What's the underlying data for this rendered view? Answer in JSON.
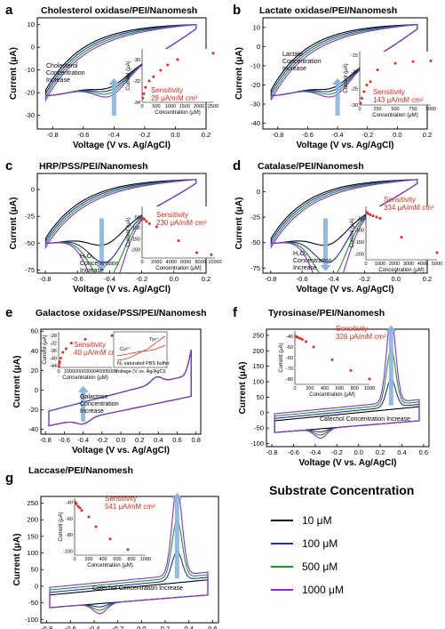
{
  "colors": {
    "c10": "#000000",
    "c100": "#1f2fb5",
    "c500": "#1b9a1b",
    "c1000": "#8a2be2",
    "arrow": "#8ab4dc",
    "sensitivity": "#e8281e"
  },
  "legend": {
    "title": "Substrate Concentration",
    "entries": [
      "10 μM",
      "100 μM",
      "500 μM",
      "1000 μM"
    ]
  },
  "chart_data": [
    {
      "id": "a",
      "letter": "a",
      "type": "line",
      "title": "Cholesterol oxidase/PEI/Nanomesh",
      "xlabel": "Voltage (V vs. Ag/AgCl)",
      "ylabel": "Current (μA)",
      "xlim": [
        -0.9,
        0.2
      ],
      "ylim": [
        -36,
        13
      ],
      "xticks": [
        -0.8,
        -0.6,
        -0.4,
        -0.2,
        0.0,
        0.2
      ],
      "yticks": [
        -30,
        -20,
        -10,
        0,
        10
      ],
      "annotation": [
        "Cholesterol",
        "Concentration",
        "Increase"
      ],
      "inset": {
        "xlabel": "Concentration (μM)",
        "ylabel": "Current (μA)",
        "xlim": [
          0,
          2500
        ],
        "ylim": [
          -34,
          -29
        ],
        "xticks": [
          0,
          500,
          1000,
          1500,
          2000,
          2500
        ],
        "yticks": [
          -34,
          -32,
          -30
        ],
        "points": [
          [
            25,
            -33.6
          ],
          [
            60,
            -33.2
          ],
          [
            120,
            -32.6
          ],
          [
            250,
            -32
          ],
          [
            400,
            -31.6
          ],
          [
            650,
            -31
          ],
          [
            900,
            -30.5
          ],
          [
            1250,
            -30
          ],
          [
            2500,
            -29.4
          ]
        ],
        "sensitivity": [
          "Sensitivity",
          "28 μA/mM cm²"
        ]
      }
    },
    {
      "id": "b",
      "letter": "b",
      "type": "line",
      "title": "Lactate oxidase/PEI/Nanomesh",
      "xlabel": "Voltage (V vs. Ag/AgCl)",
      "ylabel": "Current (μA)",
      "xlim": [
        -0.9,
        0.2
      ],
      "ylim": [
        -43,
        15
      ],
      "xticks": [
        -0.8,
        -0.6,
        -0.4,
        -0.2,
        0.0,
        0.2
      ],
      "yticks": [
        -40,
        -30,
        -20,
        -10,
        0,
        10
      ],
      "annotation": [
        "Lactate",
        "Concentration",
        "Increase"
      ],
      "inset": {
        "xlabel": "Concentration (μM)",
        "ylabel": "Current (μA)",
        "xlim": [
          0,
          1000
        ],
        "ylim": [
          -30,
          -14
        ],
        "xticks": [
          0,
          250,
          500,
          750,
          1000
        ],
        "yticks": [
          -30,
          -25,
          -20,
          -15
        ],
        "points": [
          [
            10,
            -29.5
          ],
          [
            30,
            -28
          ],
          [
            60,
            -26
          ],
          [
            100,
            -24
          ],
          [
            150,
            -23
          ],
          [
            250,
            -19.5
          ],
          [
            500,
            -17.5
          ],
          [
            750,
            -17
          ],
          [
            1000,
            -16.8
          ]
        ],
        "sensitivity": [
          "Sensitivity",
          "143 μA/mM cm²"
        ]
      }
    },
    {
      "id": "c",
      "letter": "c",
      "type": "line",
      "title": "HRP/PSS/PEI/Nanomesh",
      "xlabel": "Voltage (V vs. Ag/AgCl)",
      "ylabel": "Current (μA)",
      "xlim": [
        -0.85,
        0.2
      ],
      "ylim": [
        -78,
        15
      ],
      "xticks": [
        -0.8,
        -0.6,
        -0.4,
        -0.2,
        0.0,
        0.2
      ],
      "yticks": [
        -75,
        -50,
        -25,
        0
      ],
      "annotation": [
        "H₂O₂",
        "Concentration",
        "Increase"
      ],
      "inset": {
        "xlabel": "Concentration (μM)",
        "ylabel": "Current (μA)",
        "xlim": [
          0,
          10000
        ],
        "ylim": [
          -240,
          0
        ],
        "xticks": [
          0,
          2000,
          4000,
          6000,
          8000,
          10000
        ],
        "yticks": [
          -200,
          -150,
          -100,
          -50
        ],
        "points": [
          [
            100,
            -55
          ],
          [
            300,
            -60
          ],
          [
            600,
            -70
          ],
          [
            1000,
            -80
          ],
          [
            2000,
            -95
          ],
          [
            5000,
            -160
          ],
          [
            7500,
            -215
          ],
          [
            9500,
            -225
          ]
        ],
        "sensitivity": [
          "Sensitivity",
          "230 μA/mM cm²"
        ]
      }
    },
    {
      "id": "d",
      "letter": "d",
      "type": "line",
      "title": "Catalase/PEI/Nanomesh",
      "xlabel": "Voltage (V vs. Ag/AgCl)",
      "ylabel": "Current (μA)",
      "xlim": [
        -0.85,
        0.2
      ],
      "ylim": [
        -80,
        18
      ],
      "xticks": [
        -0.8,
        -0.6,
        -0.4,
        -0.2,
        0.0,
        0.2
      ],
      "yticks": [
        -75,
        -50,
        -25,
        0
      ],
      "annotation": [
        "H₂O₂",
        "Concentration",
        "Increase"
      ],
      "inset": {
        "xlabel": "Concentration (μM)",
        "ylabel": "Current (μA)",
        "xlim": [
          0,
          5000
        ],
        "ylim": [
          -225,
          0
        ],
        "xticks": [
          0,
          1000,
          2000,
          3000,
          4000,
          5000
        ],
        "yticks": [
          -200,
          -150,
          -100,
          -50
        ],
        "points": [
          [
            50,
            -25
          ],
          [
            150,
            -30
          ],
          [
            300,
            -35
          ],
          [
            500,
            -40
          ],
          [
            750,
            -45
          ],
          [
            1000,
            -50
          ],
          [
            2500,
            -130
          ],
          [
            5000,
            -195
          ]
        ],
        "sensitivity": [
          "Sensitivity",
          "334 μA/mM cm²"
        ]
      }
    },
    {
      "id": "e",
      "letter": "e",
      "type": "line",
      "title": "Galactose oxidase/PSS/PEI/Nanomesh",
      "xlabel": "Voltage (V vs. Ag/AgCl)",
      "ylabel": "Current (μA)",
      "xlim": [
        -0.85,
        0.85
      ],
      "ylim": [
        -45,
        62
      ],
      "xticks": [
        -0.8,
        -0.6,
        -0.4,
        -0.2,
        0.0,
        0.2,
        0.4,
        0.6,
        0.8
      ],
      "yticks": [
        -40,
        -20,
        0,
        20,
        40,
        60
      ],
      "annotation": [
        "Galactose",
        "Concentration",
        "Increase"
      ],
      "inset": {
        "xlabel": "Concentration (μM)",
        "ylabel": "Current (μA)",
        "xlim": [
          0,
          5000
        ],
        "ylim": [
          -45,
          -26
        ],
        "xticks": [
          0,
          1000,
          2000,
          3000,
          4000,
          5000
        ],
        "yticks": [
          -44,
          -40,
          -36,
          -32,
          -28
        ],
        "points": [
          [
            25,
            -44.5
          ],
          [
            60,
            -43
          ],
          [
            100,
            -42
          ],
          [
            200,
            -40
          ],
          [
            400,
            -37
          ],
          [
            700,
            -35
          ],
          [
            1200,
            -32
          ],
          [
            2500,
            -30
          ],
          [
            5000,
            -28
          ]
        ],
        "sensitivity": [
          "Sensitivity",
          "40 μA/mM cm²"
        ]
      },
      "inset2": {
        "labels": [
          "Tyr",
          "Cu",
          "N₂ saturated PBS buffer",
          "Voltage (V vs. Ag/AgCl)"
        ]
      }
    },
    {
      "id": "f",
      "letter": "f",
      "type": "line",
      "title": "Tyrosinase/PEI/Nanomesh",
      "xlabel": "Voltage (V vs. Ag/AgCl)",
      "ylabel": "Current (μA)",
      "xlim": [
        -0.85,
        0.65
      ],
      "ylim": [
        -110,
        270
      ],
      "xticks": [
        -0.8,
        -0.6,
        -0.4,
        -0.2,
        0.0,
        0.2,
        0.4,
        0.6
      ],
      "yticks": [
        -100,
        -50,
        0,
        50,
        100,
        150,
        200,
        250
      ],
      "annotation": [
        "Catechol Concentration Increase"
      ],
      "inset": {
        "xlabel": "Concentration (μM)",
        "ylabel": "Current (μA)",
        "xlim": [
          0,
          1000
        ],
        "ylim": [
          -85,
          -35
        ],
        "xticks": [
          0,
          200,
          400,
          600,
          800,
          1000
        ],
        "yticks": [
          -80,
          -70,
          -60,
          -50,
          -40
        ],
        "points": [
          [
            10,
            -40
          ],
          [
            20,
            -40.5
          ],
          [
            40,
            -41
          ],
          [
            70,
            -42
          ],
          [
            100,
            -43
          ],
          [
            150,
            -45
          ],
          [
            250,
            -50
          ],
          [
            500,
            -62
          ],
          [
            750,
            -72
          ],
          [
            1000,
            -80
          ]
        ],
        "sensitivity": [
          "Sensitivity",
          "326 μA/mM cm²"
        ]
      }
    },
    {
      "id": "g",
      "letter": "g",
      "type": "line",
      "title": "Laccase/PEI/Nanomesh",
      "xlabel": "Voltage (V vs. Ag/AgCl)",
      "ylabel": "Current (μA)",
      "xlim": [
        -0.85,
        0.65
      ],
      "ylim": [
        -110,
        270
      ],
      "xticks": [
        -0.8,
        -0.6,
        -0.4,
        -0.2,
        0.0,
        0.2,
        0.4,
        0.6
      ],
      "yticks": [
        -100,
        -50,
        0,
        50,
        100,
        150,
        200,
        250
      ],
      "annotation": [
        "Catechol Concentration Increase"
      ],
      "inset": {
        "xlabel": "Concentration (μM)",
        "ylabel": "Current (μA)",
        "xlim": [
          0,
          1000
        ],
        "ylim": [
          -105,
          -35
        ],
        "xticks": [
          0,
          200,
          400,
          600,
          800,
          1000
        ],
        "yticks": [
          -100,
          -80,
          -60,
          -40
        ],
        "points": [
          [
            10,
            -40
          ],
          [
            25,
            -42
          ],
          [
            50,
            -45
          ],
          [
            75,
            -47
          ],
          [
            100,
            -50
          ],
          [
            200,
            -58
          ],
          [
            300,
            -70
          ],
          [
            500,
            -85
          ],
          [
            750,
            -98
          ]
        ],
        "sensitivity": [
          "Sensitivity",
          "541 μA/mM cm²"
        ]
      }
    }
  ]
}
